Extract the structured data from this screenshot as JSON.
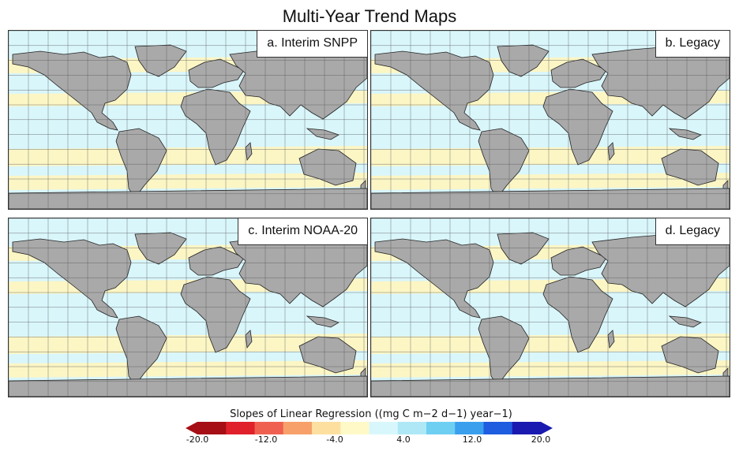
{
  "title": "Multi-Year Trend Maps",
  "panels": [
    {
      "label": "a. Interim SNPP"
    },
    {
      "label": "b. Legacy"
    },
    {
      "label": "c. Interim NOAA-20"
    },
    {
      "label": "d. Legacy"
    }
  ],
  "colorbar": {
    "title": "Slopes of Linear Regression ((mg C m−2 d−1) year−1)",
    "ticks": [
      "-20.0",
      "-12.0",
      "-4.0",
      "4.0",
      "12.0",
      "20.0"
    ],
    "colors": [
      "#a50f15",
      "#e0202a",
      "#f06050",
      "#f7a06a",
      "#fde0a0",
      "#fff9c8",
      "#d8f7fc",
      "#aee8f6",
      "#6fcff2",
      "#3aa0ee",
      "#1e5ce0",
      "#1a1ab0"
    ]
  },
  "map_colors": {
    "land": "#a9a9a9",
    "ocean_positive": "#d9f6fb",
    "ocean_negative": "#fff6bf",
    "grid": "#555555"
  }
}
